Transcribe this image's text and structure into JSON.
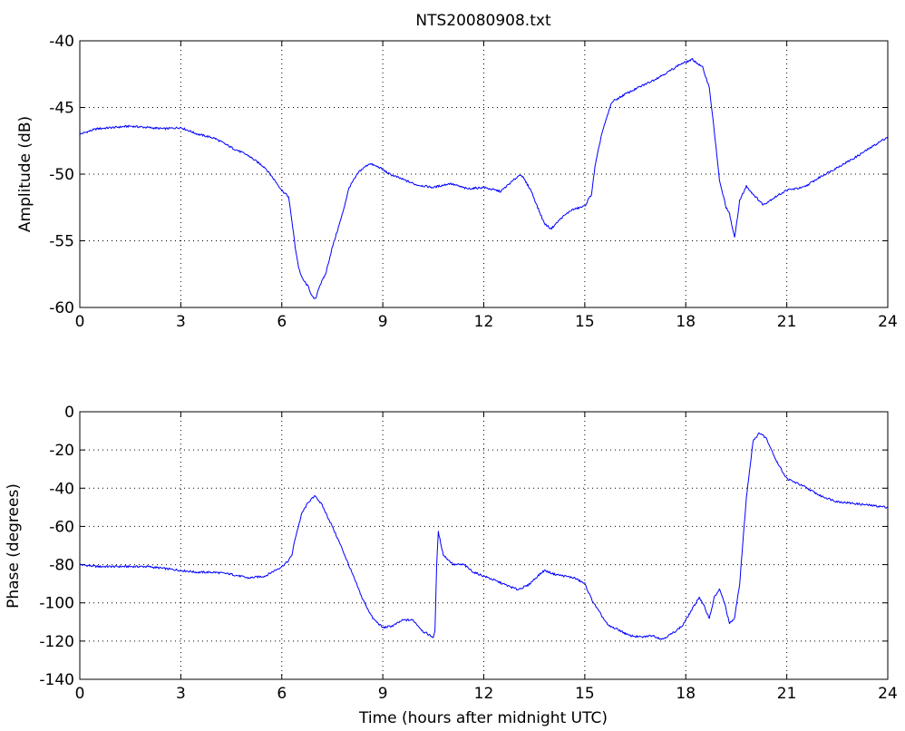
{
  "figure": {
    "title": "NTS20080908.txt",
    "line_color": "#0000ff"
  },
  "chart_data": [
    {
      "type": "line",
      "title": "NTS20080908.txt",
      "xlabel": "",
      "ylabel": "Amplitude (dB)",
      "xlim": [
        0,
        24
      ],
      "ylim": [
        -60,
        -40
      ],
      "xticks": [
        0,
        3,
        6,
        9,
        12,
        15,
        18,
        21,
        24
      ],
      "yticks": [
        -60,
        -55,
        -50,
        -45,
        -40
      ],
      "xtick_labels": [
        "0",
        "3",
        "6",
        "9",
        "12",
        "15",
        "18",
        "21",
        "24"
      ],
      "ytick_labels": [
        "-60",
        "-55",
        "-50",
        "-45",
        "-40"
      ],
      "grid": true,
      "legend": "none",
      "series": [
        {
          "color": "#0000ff",
          "x": [
            0,
            0.5,
            1.0,
            1.5,
            2.0,
            2.5,
            3.0,
            3.5,
            4.0,
            4.5,
            5.0,
            5.5,
            5.8,
            6.0,
            6.2,
            6.3,
            6.4,
            6.5,
            6.6,
            6.8,
            6.9,
            7.0,
            7.1,
            7.3,
            7.5,
            7.8,
            8.0,
            8.3,
            8.6,
            8.9,
            9.2,
            9.5,
            10.0,
            10.5,
            11.0,
            11.5,
            12.0,
            12.5,
            13.0,
            13.1,
            13.4,
            13.6,
            13.8,
            14.0,
            14.3,
            14.6,
            15.0,
            15.2,
            15.3,
            15.5,
            15.8,
            16.2,
            16.6,
            17.0,
            17.5,
            17.8,
            18.0,
            18.2,
            18.3,
            18.5,
            18.7,
            18.9,
            19.0,
            19.2,
            19.3,
            19.45,
            19.6,
            19.8,
            20.0,
            20.3,
            20.6,
            21.0,
            21.5,
            22.0,
            22.5,
            23.0,
            23.5,
            24.0
          ],
          "y": [
            -47.0,
            -46.6,
            -46.5,
            -46.4,
            -46.5,
            -46.6,
            -46.5,
            -47.0,
            -47.3,
            -48.0,
            -48.6,
            -49.5,
            -50.5,
            -51.2,
            -51.7,
            -53.5,
            -55.5,
            -57.0,
            -57.8,
            -58.5,
            -59.2,
            -59.4,
            -58.5,
            -57.5,
            -55.5,
            -53.0,
            -51.0,
            -49.8,
            -49.2,
            -49.5,
            -50.0,
            -50.3,
            -50.8,
            -51.0,
            -50.7,
            -51.1,
            -51.0,
            -51.3,
            -50.2,
            -50.0,
            -51.2,
            -52.5,
            -53.7,
            -54.1,
            -53.3,
            -52.7,
            -52.4,
            -51.5,
            -49.5,
            -47.0,
            -44.6,
            -44.0,
            -43.5,
            -43.0,
            -42.3,
            -41.8,
            -41.6,
            -41.4,
            -41.6,
            -42.0,
            -43.5,
            -48.0,
            -50.5,
            -52.5,
            -53.0,
            -54.8,
            -52.0,
            -50.9,
            -51.5,
            -52.3,
            -51.8,
            -51.2,
            -51.0,
            -50.2,
            -49.5,
            -48.8,
            -48.0,
            -47.2
          ]
        }
      ]
    },
    {
      "type": "line",
      "title": "",
      "xlabel": "Time (hours after midnight UTC)",
      "ylabel": "Phase (degrees)",
      "xlim": [
        0,
        24
      ],
      "ylim": [
        -140,
        0
      ],
      "xticks": [
        0,
        3,
        6,
        9,
        12,
        15,
        18,
        21,
        24
      ],
      "yticks": [
        -140,
        -120,
        -100,
        -80,
        -60,
        -40,
        -20,
        0
      ],
      "xtick_labels": [
        "0",
        "3",
        "6",
        "9",
        "12",
        "15",
        "18",
        "21",
        "24"
      ],
      "ytick_labels": [
        "-140",
        "-120",
        "-100",
        "-80",
        "-60",
        "-40",
        "-20",
        "0"
      ],
      "grid": true,
      "legend": "none",
      "series": [
        {
          "color": "#0000ff",
          "x": [
            0,
            0.5,
            1.0,
            1.5,
            2.0,
            2.5,
            3.0,
            3.5,
            4.0,
            4.5,
            5.0,
            5.5,
            5.8,
            6.0,
            6.2,
            6.3,
            6.4,
            6.6,
            6.8,
            7.0,
            7.2,
            7.5,
            7.8,
            8.1,
            8.4,
            8.7,
            9.0,
            9.3,
            9.6,
            9.9,
            10.2,
            10.5,
            10.55,
            10.6,
            10.65,
            10.8,
            11.1,
            11.4,
            11.7,
            12.0,
            12.3,
            12.7,
            13.0,
            13.3,
            13.6,
            13.8,
            14.1,
            14.4,
            14.7,
            15.0,
            15.2,
            15.4,
            15.7,
            16.0,
            16.3,
            16.7,
            17.0,
            17.3,
            17.6,
            17.9,
            18.2,
            18.4,
            18.55,
            18.7,
            18.85,
            19.0,
            19.15,
            19.3,
            19.45,
            19.6,
            19.8,
            20.0,
            20.2,
            20.4,
            20.7,
            21.0,
            21.5,
            22.0,
            22.5,
            23.0,
            23.5,
            24.0
          ],
          "y": [
            -80,
            -81,
            -81,
            -81,
            -81,
            -82,
            -83,
            -84,
            -84,
            -85,
            -87,
            -86,
            -83,
            -81,
            -78,
            -75,
            -66,
            -53,
            -47,
            -44,
            -49,
            -60,
            -72,
            -85,
            -98,
            -108,
            -113,
            -112,
            -109,
            -109,
            -115,
            -118,
            -115,
            -80,
            -63,
            -75,
            -80,
            -80,
            -84,
            -86,
            -88,
            -91,
            -93,
            -91,
            -86,
            -83,
            -85,
            -86,
            -87,
            -90,
            -98,
            -104,
            -112,
            -114,
            -117,
            -118,
            -117,
            -119,
            -116,
            -112,
            -103,
            -97,
            -102,
            -108,
            -97,
            -93,
            -100,
            -111,
            -108,
            -90,
            -45,
            -15,
            -11,
            -14,
            -26,
            -35,
            -39,
            -44,
            -47,
            -48,
            -49,
            -50
          ]
        }
      ]
    }
  ]
}
